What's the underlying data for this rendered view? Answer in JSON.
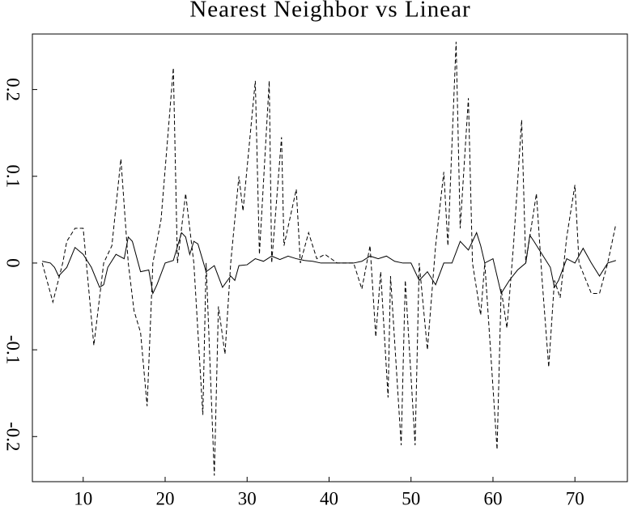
{
  "chart_data": {
    "type": "line",
    "title": "Nearest Neighbor vs Linear",
    "xlim": [
      3.8,
      76.4
    ],
    "ylim": [
      -0.252,
      0.264
    ],
    "xticks": [
      10,
      20,
      30,
      40,
      50,
      60,
      70
    ],
    "yticks": [
      -0.2,
      -0.1,
      0,
      0.1,
      0.2
    ],
    "series": [
      {
        "color": "#000000",
        "style": "solid",
        "x": [
          5,
          6,
          6.5,
          7,
          8,
          9,
          10,
          11,
          12,
          12.5,
          13,
          14,
          15,
          15.5,
          16,
          17,
          18,
          18.5,
          19,
          20,
          21,
          22,
          22.5,
          23,
          23.5,
          24,
          25,
          26,
          27,
          28,
          28.5,
          29,
          30,
          31,
          32,
          33,
          34,
          35,
          36,
          37,
          38,
          39,
          40,
          41,
          42,
          43,
          44,
          45,
          46,
          47,
          48,
          49,
          50,
          51,
          52,
          53,
          54,
          55,
          56,
          57,
          58,
          58.5,
          59,
          60,
          61,
          62,
          63,
          64,
          64.5,
          65,
          66,
          67,
          67.5,
          68,
          69,
          70,
          71,
          72,
          73,
          74,
          75
        ],
        "values": [
          0.002,
          0,
          -0.005,
          -0.015,
          -0.005,
          0.018,
          0.01,
          -0.005,
          -0.028,
          -0.025,
          -0.005,
          0.01,
          0.005,
          0.03,
          0.025,
          -0.01,
          -0.008,
          -0.035,
          -0.025,
          0,
          0.003,
          0.035,
          0.03,
          0.01,
          0.025,
          0.022,
          -0.01,
          -0.003,
          -0.028,
          -0.015,
          -0.02,
          -0.003,
          -0.002,
          0.005,
          0.002,
          0.008,
          0.004,
          0.008,
          0.005,
          0.003,
          0.002,
          0,
          0,
          0,
          0,
          0,
          0.002,
          0.008,
          0.005,
          0.008,
          0.002,
          0,
          0,
          -0.02,
          -0.01,
          -0.025,
          0,
          0,
          0.025,
          0.015,
          0.035,
          0.02,
          0,
          0.005,
          -0.035,
          -0.02,
          -0.008,
          0,
          0.032,
          0.025,
          0.01,
          -0.005,
          -0.028,
          -0.02,
          0.005,
          0,
          0.017,
          0,
          -0.015,
          0,
          0.003
        ]
      },
      {
        "color": "#000000",
        "style": "dashed",
        "x": [
          5,
          6.3,
          7.5,
          8,
          9,
          10,
          11.3,
          12.5,
          13.5,
          14.6,
          15.5,
          16.2,
          17,
          17.8,
          18.5,
          19.5,
          21,
          21.5,
          22.5,
          23.5,
          24.6,
          25,
          26,
          26.5,
          27.3,
          28,
          29,
          29.5,
          31,
          31.5,
          32.7,
          33,
          34.2,
          34.5,
          36,
          36.5,
          37.5,
          38.5,
          39.5,
          41,
          43,
          44,
          45,
          45.7,
          46.3,
          47.2,
          47.5,
          48.8,
          49.3,
          50.5,
          51,
          52,
          53,
          54,
          54.5,
          55.5,
          56,
          57,
          57.5,
          58.5,
          59,
          60.5,
          61,
          61.7,
          62.5,
          63.5,
          64,
          65.3,
          66,
          66.8,
          67.5,
          68.2,
          69,
          70,
          70.5,
          72,
          73,
          74,
          75
        ],
        "values": [
          0,
          -0.045,
          0,
          0.025,
          0.04,
          0.04,
          -0.095,
          0,
          0.02,
          0.12,
          0,
          -0.055,
          -0.08,
          -0.165,
          0,
          0.05,
          0.225,
          0,
          0.08,
          0,
          -0.175,
          0,
          -0.245,
          -0.05,
          -0.105,
          0,
          0.1,
          0.06,
          0.21,
          0.01,
          0.21,
          0,
          0.145,
          0.02,
          0.085,
          0,
          0.035,
          0.005,
          0.01,
          0,
          0,
          -0.03,
          0.02,
          -0.085,
          -0.01,
          -0.155,
          -0.015,
          -0.21,
          -0.02,
          -0.21,
          0,
          -0.1,
          0.02,
          0.105,
          0.02,
          0.255,
          0.04,
          0.19,
          0,
          -0.06,
          0,
          -0.215,
          -0.03,
          -0.075,
          0.02,
          0.165,
          0,
          0.08,
          -0.02,
          -0.12,
          -0.02,
          -0.04,
          0.03,
          0.09,
          0,
          -0.035,
          -0.035,
          0,
          0.045
        ]
      }
    ]
  }
}
